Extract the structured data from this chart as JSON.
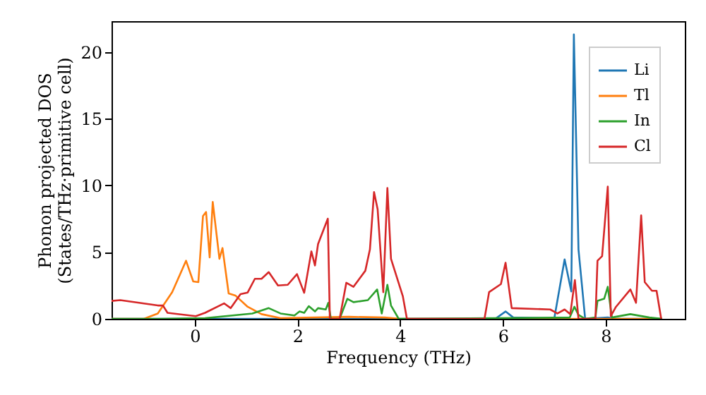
{
  "chart_data": {
    "type": "line",
    "xlabel": "Frequency (THz)",
    "ylabel": "Phonon projected DOS\n(States/THz·primitive cell)",
    "xlim": [
      -1.62,
      9.54
    ],
    "ylim": [
      0,
      22.3
    ],
    "xticks": [
      0,
      2,
      4,
      6,
      8
    ],
    "yticks": [
      0,
      5,
      10,
      15,
      20
    ],
    "grid": false,
    "legend": "top right",
    "marker": "none",
    "line_style": "solid",
    "series": [
      {
        "name": "Li",
        "color": "#1f77b4",
        "x": [
          -1.62,
          5.85,
          6.05,
          6.2,
          7.0,
          7.2,
          7.33,
          7.38,
          7.47,
          7.6,
          8.04,
          8.2,
          9.1
        ],
        "values": [
          0,
          0,
          0.55,
          0.1,
          0.05,
          4.45,
          2.05,
          21.3,
          5.2,
          0,
          0.1,
          0,
          0
        ]
      },
      {
        "name": "Tl",
        "color": "#ff7f0e",
        "x": [
          -1.62,
          -0.99,
          -0.72,
          -0.44,
          -0.17,
          -0.03,
          0.07,
          0.16,
          0.22,
          0.29,
          0.35,
          0.48,
          0.54,
          0.66,
          0.79,
          1.03,
          1.3,
          1.67,
          3.0,
          3.7,
          4.0,
          9.1
        ],
        "values": [
          0,
          0,
          0.4,
          2.0,
          4.35,
          2.8,
          2.75,
          7.7,
          8.0,
          4.6,
          8.75,
          4.5,
          5.3,
          1.9,
          1.75,
          0.9,
          0.35,
          0.05,
          0.15,
          0.1,
          0,
          0
        ]
      },
      {
        "name": "In",
        "color": "#2ca02c",
        "x": [
          -1.62,
          -0.72,
          0.2,
          1.12,
          1.44,
          1.67,
          1.94,
          2.04,
          2.13,
          2.22,
          2.34,
          2.4,
          2.55,
          2.6,
          2.65,
          2.82,
          2.97,
          3.09,
          3.37,
          3.55,
          3.64,
          3.75,
          3.82,
          3.97,
          7.3,
          7.39,
          7.47,
          7.6,
          7.8,
          7.84,
          7.97,
          8.04,
          8.12,
          8.48,
          8.85,
          9.1
        ],
        "values": [
          0,
          0,
          0.05,
          0.4,
          0.8,
          0.4,
          0.25,
          0.55,
          0.45,
          0.95,
          0.55,
          0.8,
          0.7,
          1.2,
          0,
          0,
          1.5,
          1.25,
          1.4,
          2.2,
          0.4,
          2.55,
          1.0,
          0,
          0.1,
          0.9,
          0.3,
          0,
          0.1,
          1.35,
          1.5,
          2.4,
          0.1,
          0.35,
          0.1,
          0
        ]
      },
      {
        "name": "Cl",
        "color": "#d62728",
        "x": [
          -1.62,
          -1.45,
          -0.72,
          -0.62,
          -0.53,
          0.02,
          0.2,
          0.57,
          0.7,
          0.89,
          1.03,
          1.17,
          1.3,
          1.44,
          1.62,
          1.81,
          1.99,
          2.13,
          2.27,
          2.34,
          2.4,
          2.59,
          2.63,
          2.82,
          2.95,
          3.09,
          3.32,
          3.41,
          3.49,
          3.56,
          3.67,
          3.75,
          3.82,
          4.05,
          4.13,
          5.64,
          5.73,
          5.96,
          6.05,
          6.17,
          6.92,
          7.06,
          7.2,
          7.31,
          7.4,
          7.47,
          7.8,
          7.84,
          7.93,
          8.04,
          8.1,
          8.2,
          8.48,
          8.59,
          8.69,
          8.76,
          8.9,
          8.99,
          9.08
        ],
        "values": [
          1.34,
          1.4,
          1.0,
          1.0,
          0.45,
          0.2,
          0.45,
          1.16,
          0.8,
          1.85,
          1.97,
          3.0,
          3.0,
          3.5,
          2.5,
          2.55,
          3.35,
          1.95,
          5.05,
          4.0,
          5.6,
          7.5,
          0,
          0,
          2.7,
          2.4,
          3.6,
          5.2,
          9.5,
          8.2,
          2.0,
          9.8,
          4.5,
          1.7,
          0,
          0,
          2.0,
          2.6,
          4.2,
          0.8,
          0.7,
          0.4,
          0.7,
          0.35,
          2.9,
          0,
          0,
          4.35,
          4.7,
          9.9,
          0.2,
          0.9,
          2.2,
          1.2,
          7.75,
          2.75,
          2.1,
          2.1,
          0
        ]
      }
    ]
  }
}
